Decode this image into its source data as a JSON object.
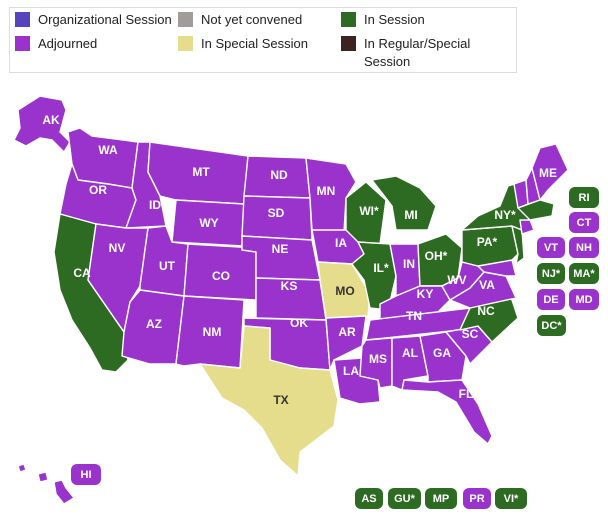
{
  "legend": {
    "items": [
      {
        "label": "Organizational Session",
        "color": "#5544bb"
      },
      {
        "label": "Adjourned",
        "color": "#9933cc"
      },
      {
        "label": "Not yet convened",
        "color": "#a09c9c"
      },
      {
        "label": "In Special Session",
        "color": "#e6dd8c"
      },
      {
        "label": "In Session",
        "color": "#2d6b22"
      },
      {
        "label": "In Regular/Special Session",
        "color": "#3d2222"
      }
    ]
  },
  "colors": {
    "adjourned": "#9933cc",
    "in_session": "#2d6b22",
    "special": "#e6dd8c"
  },
  "map": {
    "states": {
      "AK": "AK",
      "WA": "WA",
      "OR": "OR",
      "CA": "CA",
      "ID": "ID",
      "NV": "NV",
      "MT": "MT",
      "WY": "WY",
      "UT": "UT",
      "AZ": "AZ",
      "CO": "CO",
      "NM": "NM",
      "ND": "ND",
      "SD": "SD",
      "NE": "NE",
      "KS": "KS",
      "OK": "OK",
      "TX": "TX",
      "MN": "MN",
      "IA": "IA",
      "MO": "MO",
      "AR": "AR",
      "LA": "LA",
      "WI": "WI*",
      "IL": "IL*",
      "MI": "MI",
      "IN": "IN",
      "OH": "OH*",
      "KY": "KY",
      "TN": "TN",
      "MS": "MS",
      "AL": "AL",
      "GA": "GA",
      "FL": "FL",
      "SC": "SC",
      "NC": "NC",
      "VA": "VA",
      "WV": "WV",
      "PA": "PA*",
      "NY": "NY*",
      "ME": "ME",
      "HI": "HI"
    },
    "side_badges": {
      "RI": "RI",
      "CT": "CT",
      "VT": "VT",
      "NH": "NH",
      "NJ": "NJ*",
      "MA": "MA*",
      "DE": "DE",
      "MD": "MD",
      "DC": "DC*"
    },
    "territories": {
      "AS": "AS",
      "GU": "GU*",
      "MP": "MP",
      "PR": "PR",
      "VI": "VI*"
    }
  }
}
